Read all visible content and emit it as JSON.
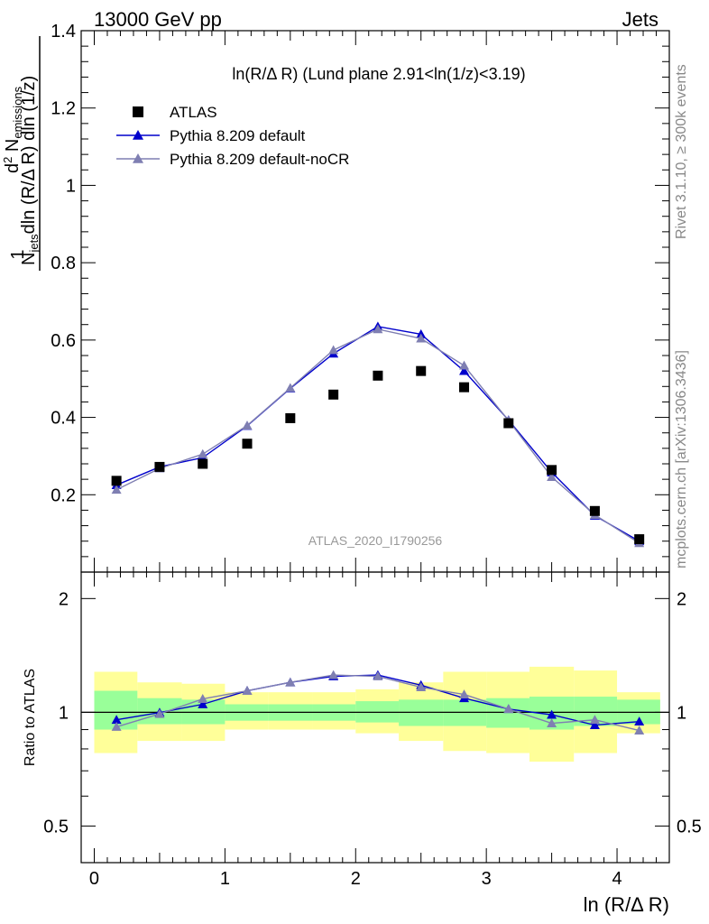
{
  "header": {
    "left": "13000 GeV pp",
    "right": "Jets"
  },
  "side_texts": {
    "rivet": "Rivet 3.1.10, ≥ 300k events",
    "mcplots": "mcplots.cern.ch [arXiv:1306.3436]"
  },
  "colors": {
    "atlas": "#000000",
    "default": "#0000cc",
    "noCR": "#7f7fb2",
    "band_inner": "#99ff99",
    "band_outer": "#ffff99",
    "watermark": "#999999"
  },
  "chart_data": [
    {
      "type": "scatter",
      "title": "ln(R/Δ R) (Lund plane 2.91<ln(1/z)<3.19)",
      "watermark": "ATLAS_2020_I1790256",
      "ylabel": "1/N_jets d²N_emissions / dln(R/ΔR) dln(1/z)",
      "xlabel": "ln (R/Δ R)",
      "xlim": [
        -0.1,
        4.4
      ],
      "ylim": [
        0,
        1.4
      ],
      "yticks": [
        "0.2",
        "0.4",
        "0.6",
        "0.8",
        "1",
        "1.2",
        "1.4"
      ],
      "legend_position": "top-left",
      "legend": [
        "ATLAS",
        "Pythia 8.209 default",
        "Pythia 8.209 default-noCR"
      ],
      "x": [
        0.17,
        0.5,
        0.83,
        1.17,
        1.5,
        1.83,
        2.17,
        2.5,
        2.83,
        3.17,
        3.5,
        3.83,
        4.17
      ],
      "series": [
        {
          "name": "ATLAS",
          "marker": "square",
          "values": [
            0.236,
            0.272,
            0.28,
            0.332,
            0.398,
            0.459,
            0.508,
            0.52,
            0.478,
            0.385,
            0.264,
            0.158,
            0.085
          ]
        },
        {
          "name": "Pythia 8.209 default",
          "marker": "triangle",
          "values": [
            0.225,
            0.272,
            0.296,
            0.378,
            0.475,
            0.565,
            0.635,
            0.615,
            0.52,
            0.393,
            0.258,
            0.146,
            0.08
          ]
        },
        {
          "name": "Pythia 8.209 default-noCR",
          "marker": "triangle",
          "values": [
            0.213,
            0.268,
            0.305,
            0.379,
            0.476,
            0.574,
            0.628,
            0.604,
            0.534,
            0.392,
            0.246,
            0.148,
            0.075
          ]
        }
      ]
    },
    {
      "type": "line",
      "ylabel": "Ratio to ATLAS",
      "ylog": true,
      "ylim": [
        0.4,
        2.35
      ],
      "yticks": [
        "0.5",
        "1",
        "2"
      ],
      "xticks": [
        "0",
        "1",
        "2",
        "3",
        "4"
      ],
      "bin_edges": [
        0.0,
        0.33,
        0.67,
        1.0,
        1.33,
        1.67,
        2.0,
        2.33,
        2.67,
        3.0,
        3.33,
        3.67,
        4.0,
        4.33
      ],
      "band_inner": [
        [
          0.9,
          1.14
        ],
        [
          0.93,
          1.09
        ],
        [
          0.93,
          1.08
        ],
        [
          0.95,
          1.05
        ],
        [
          0.95,
          1.05
        ],
        [
          0.95,
          1.05
        ],
        [
          0.94,
          1.07
        ],
        [
          0.92,
          1.08
        ],
        [
          0.92,
          1.08
        ],
        [
          0.91,
          1.09
        ],
        [
          0.9,
          1.1
        ],
        [
          0.92,
          1.1
        ],
        [
          0.93,
          1.08
        ]
      ],
      "band_outer": [
        [
          0.78,
          1.28
        ],
        [
          0.84,
          1.2
        ],
        [
          0.84,
          1.19
        ],
        [
          0.9,
          1.13
        ],
        [
          0.9,
          1.13
        ],
        [
          0.9,
          1.13
        ],
        [
          0.88,
          1.15
        ],
        [
          0.84,
          1.2
        ],
        [
          0.79,
          1.28
        ],
        [
          0.78,
          1.28
        ],
        [
          0.74,
          1.32
        ],
        [
          0.78,
          1.29
        ],
        [
          0.88,
          1.13
        ]
      ],
      "x": [
        0.17,
        0.5,
        0.83,
        1.17,
        1.5,
        1.83,
        2.17,
        2.5,
        2.83,
        3.17,
        3.5,
        3.83,
        4.17
      ],
      "series": [
        {
          "name": "Pythia 8.209 default",
          "values": [
            0.955,
            0.998,
            1.05,
            1.14,
            1.2,
            1.245,
            1.255,
            1.18,
            1.09,
            1.02,
            0.985,
            0.925,
            0.945
          ]
        },
        {
          "name": "Pythia 8.209 default-noCR",
          "values": [
            0.915,
            0.99,
            1.085,
            1.14,
            1.2,
            1.255,
            1.245,
            1.165,
            1.115,
            1.02,
            0.935,
            0.955,
            0.895
          ]
        }
      ]
    }
  ]
}
